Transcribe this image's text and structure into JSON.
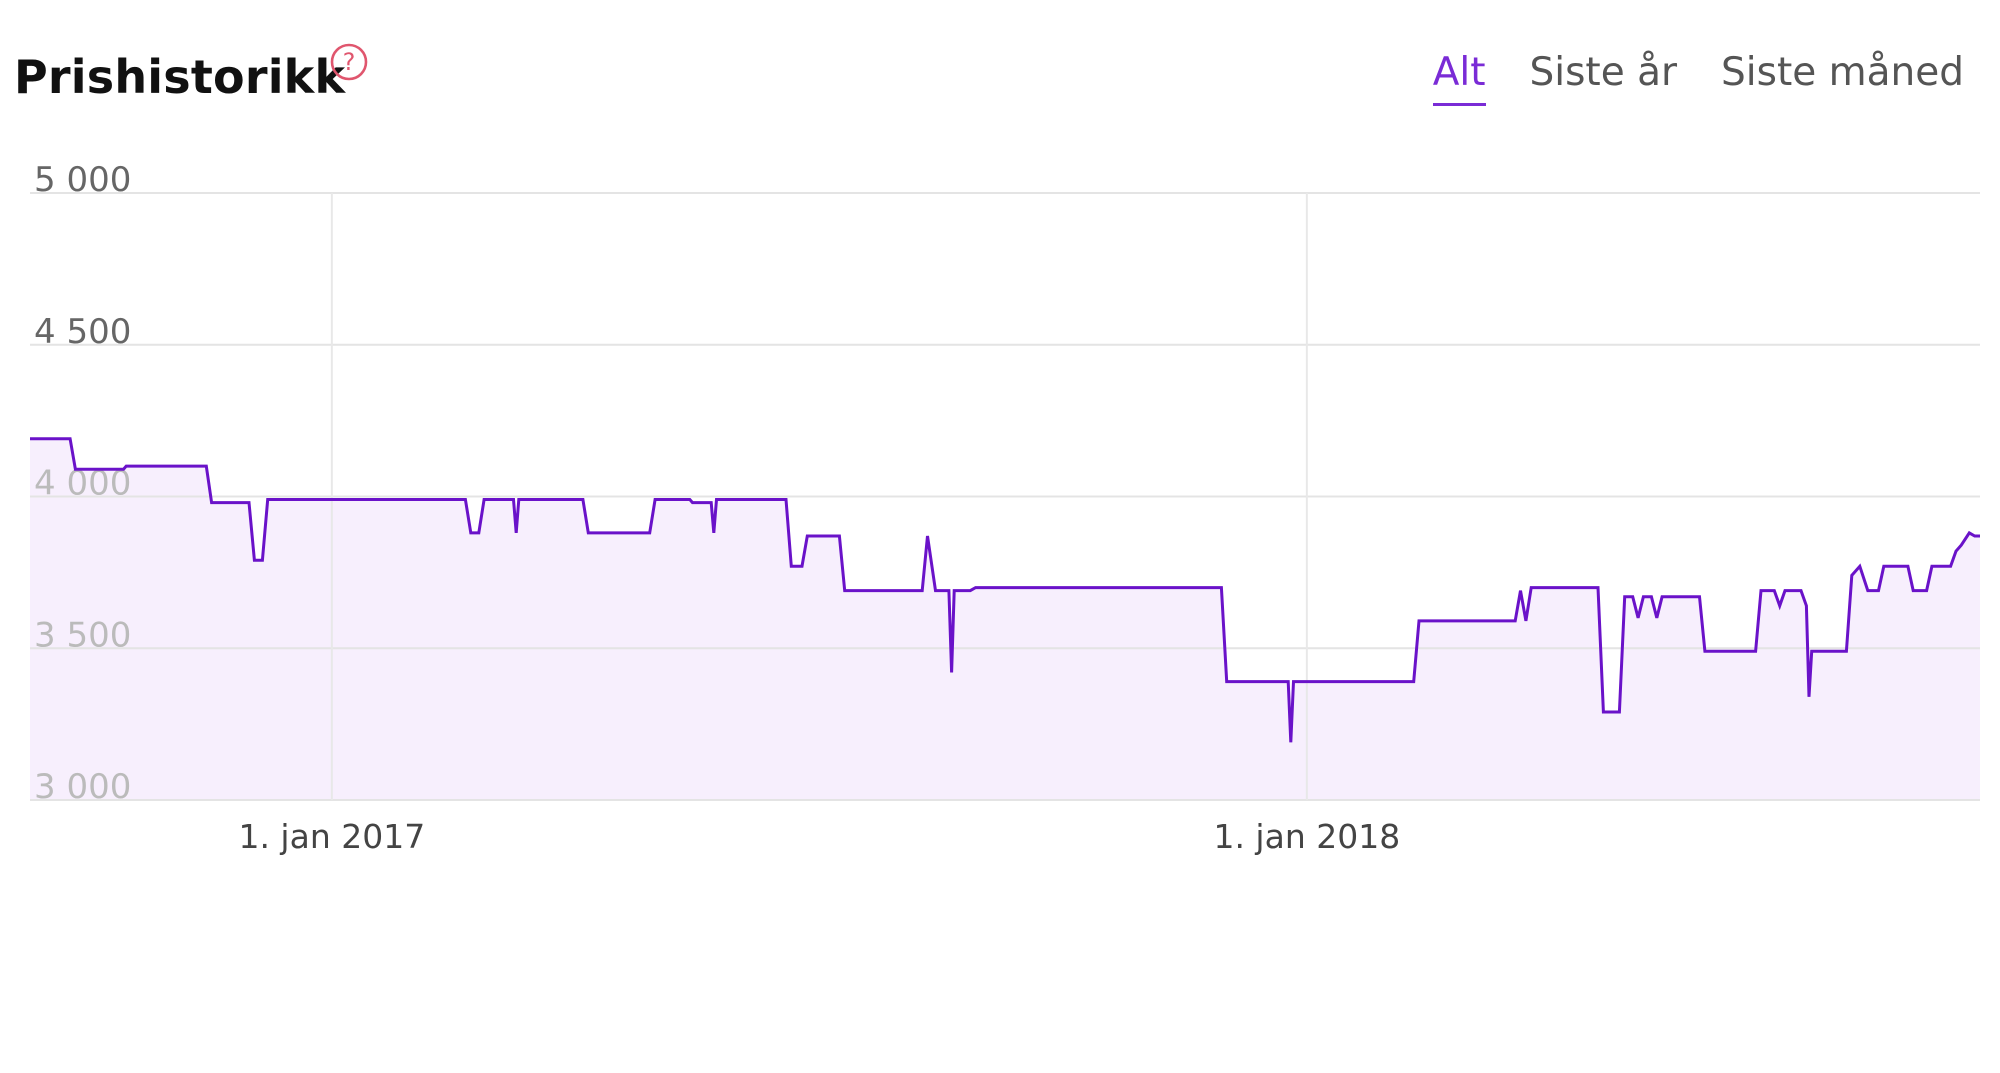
{
  "header": {
    "title": "Prishistorikk",
    "help_icon": "question-circle-icon",
    "tabs": [
      {
        "label": "Alt",
        "active": true
      },
      {
        "label": "Siste år",
        "active": false
      },
      {
        "label": "Siste måned",
        "active": false
      }
    ]
  },
  "colors": {
    "line": "#6a12c9",
    "fill": "#f7effd",
    "accent": "#7a2bd6",
    "help_icon": "#e0566e"
  },
  "chart_data": {
    "type": "line",
    "ylim": [
      3000,
      5000
    ],
    "yticks": [
      3000,
      3500,
      4000,
      4500,
      5000
    ],
    "ytick_labels": [
      "3 000",
      "3 500",
      "4 000",
      "4 500",
      "5 000"
    ],
    "xlim": [
      "2016-09-10",
      "2018-09-10"
    ],
    "xticks": [
      {
        "date": "2017-01-01",
        "label": "1. jan 2017"
      },
      {
        "date": "2018-01-01",
        "label": "1. jan 2018"
      }
    ],
    "grid": true,
    "area_fill": true,
    "points": [
      [
        "2016-09-10",
        4190
      ],
      [
        "2016-09-25",
        4190
      ],
      [
        "2016-09-27",
        4090
      ],
      [
        "2016-10-15",
        4090
      ],
      [
        "2016-10-16",
        4100
      ],
      [
        "2016-11-15",
        4100
      ],
      [
        "2016-11-17",
        3980
      ],
      [
        "2016-12-01",
        3980
      ],
      [
        "2016-12-03",
        3790
      ],
      [
        "2016-12-06",
        3790
      ],
      [
        "2016-12-08",
        3990
      ],
      [
        "2017-02-20",
        3990
      ],
      [
        "2017-02-22",
        3880
      ],
      [
        "2017-02-25",
        3880
      ],
      [
        "2017-02-27",
        3990
      ],
      [
        "2017-03-10",
        3990
      ],
      [
        "2017-03-11",
        3880
      ],
      [
        "2017-03-12",
        3990
      ],
      [
        "2017-04-05",
        3990
      ],
      [
        "2017-04-07",
        3880
      ],
      [
        "2017-04-30",
        3880
      ],
      [
        "2017-05-02",
        3990
      ],
      [
        "2017-05-15",
        3990
      ],
      [
        "2017-05-16",
        3980
      ],
      [
        "2017-05-23",
        3980
      ],
      [
        "2017-05-24",
        3880
      ],
      [
        "2017-05-25",
        3990
      ],
      [
        "2017-06-20",
        3990
      ],
      [
        "2017-06-22",
        3770
      ],
      [
        "2017-06-26",
        3770
      ],
      [
        "2017-06-28",
        3870
      ],
      [
        "2017-07-10",
        3870
      ],
      [
        "2017-07-12",
        3690
      ],
      [
        "2017-08-10",
        3690
      ],
      [
        "2017-08-12",
        3870
      ],
      [
        "2017-08-15",
        3690
      ],
      [
        "2017-08-20",
        3690
      ],
      [
        "2017-08-21",
        3420
      ],
      [
        "2017-08-22",
        3690
      ],
      [
        "2017-08-28",
        3690
      ],
      [
        "2017-08-30",
        3700
      ],
      [
        "2017-11-30",
        3700
      ],
      [
        "2017-12-02",
        3390
      ],
      [
        "2017-12-25",
        3390
      ],
      [
        "2017-12-26",
        3190
      ],
      [
        "2017-12-27",
        3390
      ],
      [
        "2018-02-10",
        3390
      ],
      [
        "2018-02-12",
        3590
      ],
      [
        "2018-03-20",
        3590
      ],
      [
        "2018-03-22",
        3690
      ],
      [
        "2018-03-24",
        3590
      ],
      [
        "2018-03-26",
        3700
      ],
      [
        "2018-04-20",
        3700
      ],
      [
        "2018-04-22",
        3290
      ],
      [
        "2018-04-28",
        3290
      ],
      [
        "2018-04-30",
        3670
      ],
      [
        "2018-05-03",
        3670
      ],
      [
        "2018-05-05",
        3600
      ],
      [
        "2018-05-07",
        3670
      ],
      [
        "2018-05-10",
        3670
      ],
      [
        "2018-05-12",
        3600
      ],
      [
        "2018-05-14",
        3670
      ],
      [
        "2018-05-28",
        3670
      ],
      [
        "2018-05-30",
        3490
      ],
      [
        "2018-06-18",
        3490
      ],
      [
        "2018-06-20",
        3690
      ],
      [
        "2018-06-25",
        3690
      ],
      [
        "2018-06-27",
        3640
      ],
      [
        "2018-06-29",
        3690
      ],
      [
        "2018-07-05",
        3690
      ],
      [
        "2018-07-07",
        3640
      ],
      [
        "2018-07-08",
        3340
      ],
      [
        "2018-07-09",
        3490
      ],
      [
        "2018-07-22",
        3490
      ],
      [
        "2018-07-24",
        3740
      ],
      [
        "2018-07-27",
        3770
      ],
      [
        "2018-07-30",
        3690
      ],
      [
        "2018-08-03",
        3690
      ],
      [
        "2018-08-05",
        3770
      ],
      [
        "2018-08-14",
        3770
      ],
      [
        "2018-08-16",
        3690
      ],
      [
        "2018-08-21",
        3690
      ],
      [
        "2018-08-23",
        3770
      ],
      [
        "2018-08-30",
        3770
      ],
      [
        "2018-09-01",
        3820
      ],
      [
        "2018-09-03",
        3840
      ],
      [
        "2018-09-06",
        3880
      ],
      [
        "2018-09-08",
        3870
      ],
      [
        "2018-09-10",
        3870
      ]
    ]
  }
}
